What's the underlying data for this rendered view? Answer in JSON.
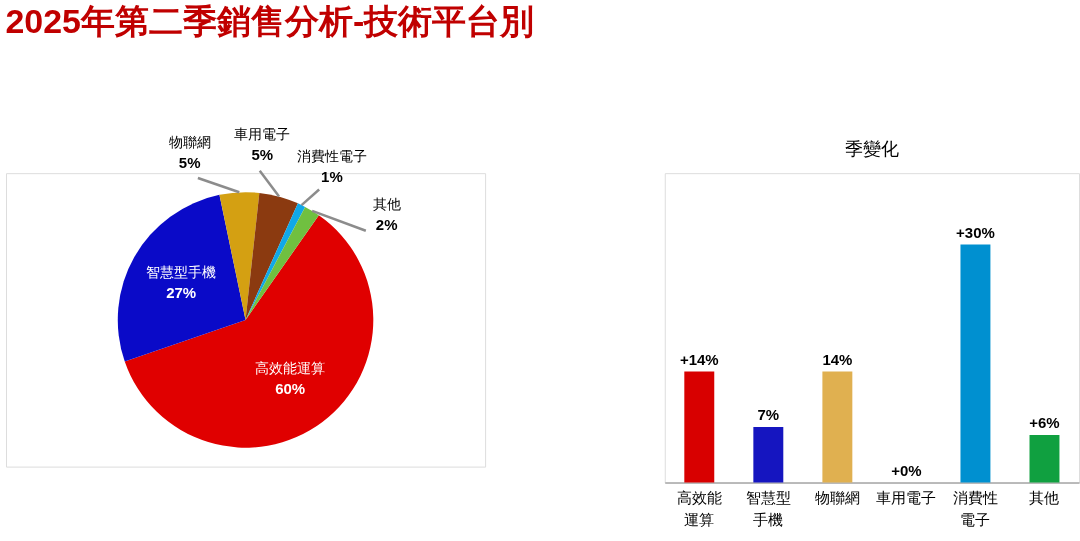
{
  "chart_data": [
    {
      "type": "pie",
      "title": "2025年第二季銷售分析-技術平台別",
      "categories": [
        "高效能運算",
        "智慧型手機",
        "物聯網",
        "車用電子",
        "消費性電子",
        "其他"
      ],
      "values": [
        60,
        27,
        5,
        5,
        1,
        2
      ],
      "colors": [
        "#e00000",
        "#0a0ac8",
        "#d4a012",
        "#8b3a10",
        "#10a8e8",
        "#70c040"
      ],
      "value_labels": [
        "60%",
        "27%",
        "5%",
        "5%",
        "1%",
        "2%"
      ]
    },
    {
      "type": "bar",
      "title": "季變化",
      "categories": [
        "高效能運算",
        "智慧型手機",
        "物聯網",
        "車用電子",
        "消費性電子",
        "其他"
      ],
      "values": [
        14,
        7,
        14,
        0,
        30,
        6
      ],
      "colors": [
        "#d80000",
        "#1515c0",
        "#e0b050",
        "#8b3a10",
        "#0090d0",
        "#10a040"
      ],
      "value_labels": [
        "+14%",
        "7%",
        "14%",
        "+0%",
        "+30%",
        "+6%"
      ],
      "tick_labels": "x"
    }
  ]
}
